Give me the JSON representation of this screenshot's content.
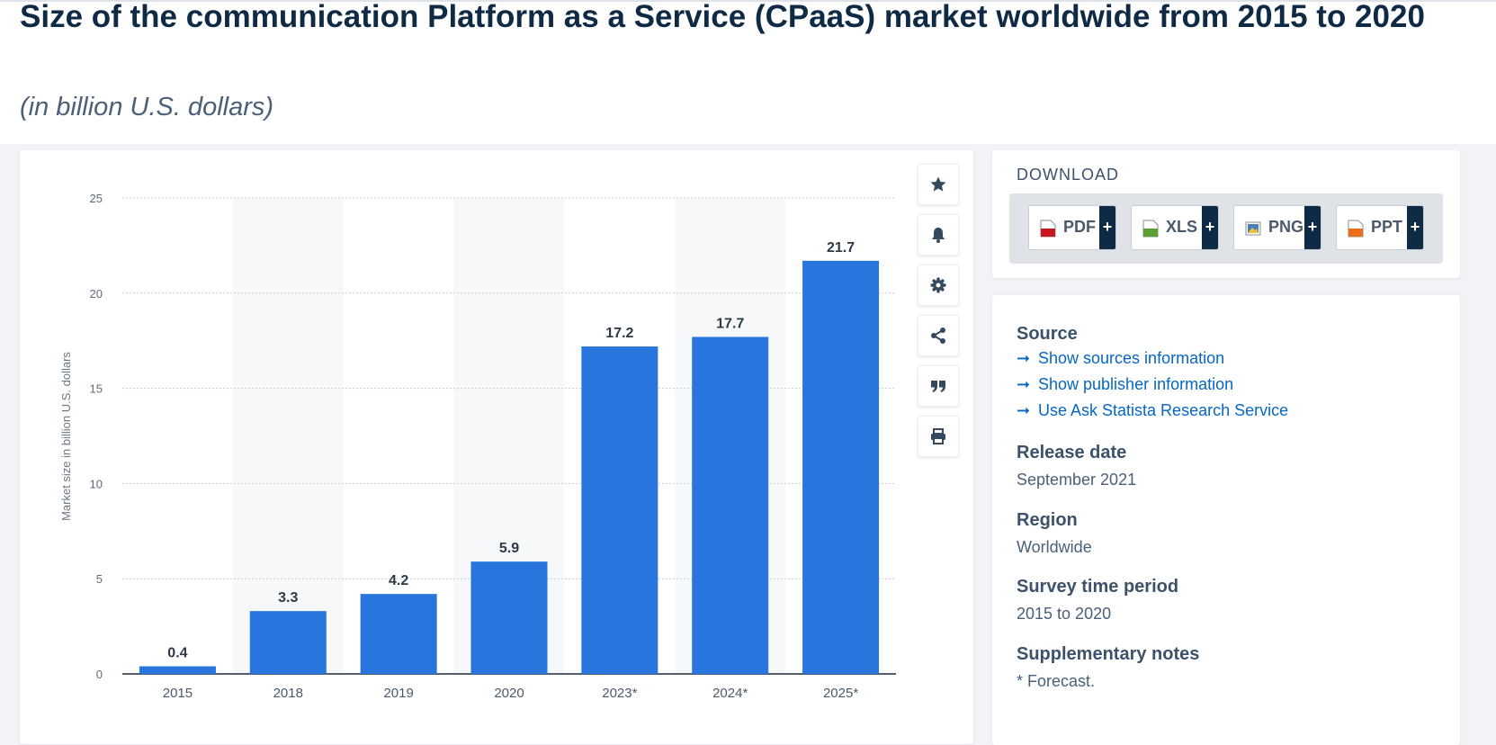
{
  "title": "Size of the communication Platform as a Service (CPaaS) market worldwide from 2015 to 2020",
  "subtitle": "(in billion U.S. dollars)",
  "colors": {
    "bar": "#2876dd",
    "title": "#0f2a44",
    "link": "#0666c4",
    "band": "#f7f8f9"
  },
  "toolbar": {
    "icons": [
      "star-icon",
      "bell-icon",
      "gear-icon",
      "share-icon",
      "quote-icon",
      "print-icon"
    ]
  },
  "download": {
    "title": "DOWNLOAD",
    "buttons": [
      {
        "label": "PDF",
        "icon": "pdf-file-icon",
        "color": "#c8171e"
      },
      {
        "label": "XLS",
        "icon": "xls-file-icon",
        "color": "#5aa02c"
      },
      {
        "label": "PNG",
        "icon": "png-file-icon",
        "color": "#4a7fb8"
      },
      {
        "label": "PPT",
        "icon": "ppt-file-icon",
        "color": "#e8701a"
      }
    ],
    "plus": "+"
  },
  "info": {
    "source_head": "Source",
    "links": [
      "Show sources information",
      "Show publisher information",
      "Use Ask Statista Research Service"
    ],
    "release_head": "Release date",
    "release_val": "September 2021",
    "region_head": "Region",
    "region_val": "Worldwide",
    "survey_head": "Survey time period",
    "survey_val": "2015 to 2020",
    "notes_head": "Supplementary notes",
    "notes_val": "* Forecast."
  },
  "chart_data": {
    "type": "bar",
    "categories": [
      "2015",
      "2018",
      "2019",
      "2020",
      "2023*",
      "2024*",
      "2025*"
    ],
    "values": [
      0.4,
      3.3,
      4.2,
      5.9,
      17.2,
      17.7,
      21.7
    ],
    "value_labels": [
      "0.4",
      "3.3",
      "4.2",
      "5.9",
      "17.2",
      "17.7",
      "21.7"
    ],
    "ylabel": "Market size in billion U.S. dollars",
    "xlabel": "",
    "ylim": [
      0,
      25
    ],
    "yticks": [
      "0",
      "5",
      "10",
      "15",
      "20",
      "25"
    ],
    "grid": true,
    "alternating_bands": true
  }
}
